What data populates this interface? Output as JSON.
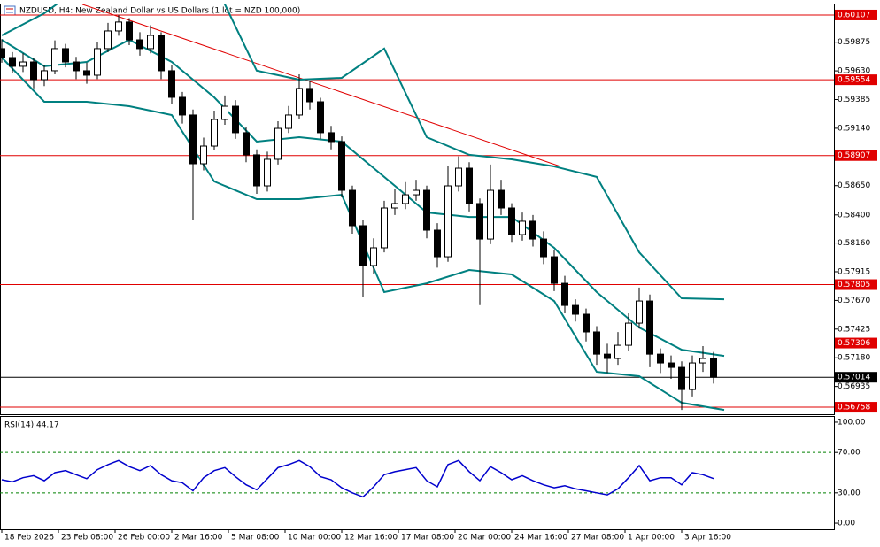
{
  "chart_data": [
    {
      "type": "candlestick",
      "title": "NZDUSD, H4:  New Zealand Dollar vs US Dollars (1 lot = NZD 100,000)",
      "xlim": [
        -0.5,
        235
      ],
      "ylim": [
        0.56698,
        0.60205
      ],
      "xticks": [
        {
          "value": 0,
          "label": "18 Feb 2026"
        },
        {
          "value": 16,
          "label": "23 Feb 08:00"
        },
        {
          "value": 32,
          "label": "26 Feb 00:00"
        },
        {
          "value": 48,
          "label": "2 Mar 16:00"
        },
        {
          "value": 64,
          "label": "5 Mar 08:00"
        },
        {
          "value": 80,
          "label": "10 Mar 00:00"
        },
        {
          "value": 96,
          "label": "12 Mar 16:00"
        },
        {
          "value": 112,
          "label": "17 Mar 08:00"
        },
        {
          "value": 128,
          "label": "20 Mar 00:00"
        },
        {
          "value": 144,
          "label": "24 Mar 16:00"
        },
        {
          "value": 160,
          "label": "27 Mar 08:00"
        },
        {
          "value": 176,
          "label": "1 Apr 00:00"
        },
        {
          "value": 192,
          "label": "3 Apr 16:00"
        }
      ],
      "yticks": [
        {
          "value": 0.59875,
          "label": "0.59875"
        },
        {
          "value": 0.5963,
          "label": "0.59630"
        },
        {
          "value": 0.59385,
          "label": "0.59385"
        },
        {
          "value": 0.5914,
          "label": "0.59140"
        },
        {
          "value": 0.5865,
          "label": "0.58650"
        },
        {
          "value": 0.584,
          "label": "0.58400"
        },
        {
          "value": 0.5816,
          "label": "0.58160"
        },
        {
          "value": 0.57915,
          "label": "0.57915"
        },
        {
          "value": 0.5767,
          "label": "0.57670"
        },
        {
          "value": 0.57425,
          "label": "0.57425"
        },
        {
          "value": 0.5718,
          "label": "0.57180"
        },
        {
          "value": 0.56935,
          "label": "0.56935"
        }
      ],
      "x": [
        0,
        3,
        6,
        9,
        12,
        15,
        18,
        21,
        24,
        27,
        30,
        33,
        36,
        39,
        42,
        45,
        48,
        51,
        54,
        57,
        60,
        63,
        66,
        69,
        72,
        75,
        78,
        81,
        84,
        87,
        90,
        93,
        96,
        99,
        102,
        105,
        108,
        111,
        114,
        117,
        120,
        123,
        126,
        129,
        132,
        135,
        138,
        141,
        144,
        147,
        150,
        153,
        156,
        159,
        162,
        165,
        168,
        171,
        174,
        177,
        180,
        183,
        186,
        189,
        192,
        195,
        198,
        201
      ],
      "open": [
        0.5982,
        0.59744,
        0.59669,
        0.59706,
        0.59555,
        0.59631,
        0.5982,
        0.59706,
        0.59631,
        0.59593,
        0.5982,
        0.59971,
        0.60047,
        0.59895,
        0.5982,
        0.59933,
        0.59631,
        0.59404,
        0.59253,
        0.58837,
        0.58988,
        0.59215,
        0.59328,
        0.59102,
        0.58913,
        0.58648,
        0.58875,
        0.59139,
        0.59253,
        0.5948,
        0.59366,
        0.59102,
        0.59026,
        0.5861,
        0.58308,
        0.57968,
        0.58119,
        0.58459,
        0.58497,
        0.58572,
        0.5861,
        0.5827,
        0.58043,
        0.58648,
        0.58799,
        0.58497,
        0.58194,
        0.5861,
        0.58459,
        0.58232,
        0.58346,
        0.58194,
        0.58043,
        0.57816,
        0.57627,
        0.57552,
        0.57401,
        0.57211,
        0.57174,
        0.57287,
        0.57476,
        0.57665,
        0.57211,
        0.57136,
        0.57098,
        0.56909,
        0.57136,
        0.57174
      ],
      "high": [
        0.599,
        0.5979,
        0.5978,
        0.5974,
        0.5968,
        0.5989,
        0.5986,
        0.5975,
        0.597,
        0.5988,
        0.6004,
        0.60107,
        0.6008,
        0.5996,
        0.6002,
        0.5996,
        0.5968,
        0.5945,
        0.593,
        0.5906,
        0.5929,
        0.5942,
        0.5938,
        0.5915,
        0.5896,
        0.5894,
        0.592,
        0.5933,
        0.596,
        0.5954,
        0.594,
        0.5916,
        0.5907,
        0.5865,
        0.5836,
        0.582,
        0.5852,
        0.5862,
        0.5868,
        0.587,
        0.5865,
        0.5833,
        0.5882,
        0.589,
        0.5885,
        0.5854,
        0.5883,
        0.587,
        0.585,
        0.5842,
        0.584,
        0.5826,
        0.581,
        0.5788,
        0.5768,
        0.576,
        0.5745,
        0.573,
        0.574,
        0.5756,
        0.5778,
        0.5772,
        0.5726,
        0.572,
        0.5715,
        0.572,
        0.5728,
        0.5723
      ],
      "low": [
        0.597,
        0.5961,
        0.5962,
        0.5948,
        0.595,
        0.596,
        0.5966,
        0.5956,
        0.5952,
        0.5956,
        0.5979,
        0.5993,
        0.5985,
        0.5976,
        0.5978,
        0.5956,
        0.5935,
        0.5918,
        0.58361,
        0.5878,
        0.5895,
        0.5917,
        0.5905,
        0.5885,
        0.5858,
        0.586,
        0.5883,
        0.591,
        0.5922,
        0.593,
        0.5905,
        0.5896,
        0.5855,
        0.5824,
        0.577,
        0.579,
        0.5808,
        0.584,
        0.5845,
        0.5852,
        0.582,
        0.5795,
        0.58,
        0.586,
        0.5843,
        0.5763,
        0.5815,
        0.584,
        0.5817,
        0.5818,
        0.5813,
        0.5798,
        0.5775,
        0.5756,
        0.5749,
        0.5732,
        0.5712,
        0.5705,
        0.5712,
        0.5724,
        0.5743,
        0.571,
        0.5705,
        0.57,
        0.56735,
        0.5685,
        0.5706,
        0.5696
      ],
      "close": [
        0.59744,
        0.59669,
        0.59706,
        0.59555,
        0.59631,
        0.5982,
        0.59706,
        0.59631,
        0.59593,
        0.5982,
        0.59971,
        0.60047,
        0.59895,
        0.5982,
        0.59933,
        0.59631,
        0.59404,
        0.59253,
        0.58837,
        0.58988,
        0.59215,
        0.59328,
        0.59102,
        0.58913,
        0.58648,
        0.58875,
        0.59139,
        0.59253,
        0.5948,
        0.59366,
        0.59102,
        0.59026,
        0.5861,
        0.58308,
        0.57968,
        0.58119,
        0.58459,
        0.58497,
        0.58572,
        0.5861,
        0.5827,
        0.58043,
        0.58648,
        0.58799,
        0.58497,
        0.58194,
        0.5861,
        0.58459,
        0.58232,
        0.58346,
        0.58194,
        0.58043,
        0.57816,
        0.57627,
        0.57552,
        0.57401,
        0.57211,
        0.57174,
        0.57287,
        0.57476,
        0.57665,
        0.57211,
        0.57136,
        0.57098,
        0.56909,
        0.57136,
        0.57174,
        0.57014
      ],
      "candle_color": "#000000",
      "bands": {
        "color": "#008080",
        "x": [
          0,
          12,
          24,
          36,
          48,
          60,
          72,
          84,
          96,
          108,
          120,
          132,
          144,
          156,
          168,
          180,
          192,
          204
        ],
        "upper": [
          0.59933,
          0.60122,
          0.60387,
          0.60538,
          0.60614,
          0.60387,
          0.59631,
          0.59555,
          0.5957,
          0.5982,
          0.59064,
          0.58913,
          0.58875,
          0.58814,
          0.58724,
          0.58081,
          0.57688,
          0.5768
        ],
        "middle": [
          0.59895,
          0.59669,
          0.59706,
          0.59895,
          0.59706,
          0.59404,
          0.59026,
          0.59064,
          0.59026,
          0.58724,
          0.58421,
          0.58383,
          0.58383,
          0.58119,
          0.57741,
          0.57438,
          0.57249,
          0.57196
        ],
        "lower": [
          0.59744,
          0.59366,
          0.59366,
          0.59328,
          0.59253,
          0.58686,
          0.58535,
          0.58535,
          0.58572,
          0.57741,
          0.57816,
          0.5793,
          0.57892,
          0.57665,
          0.5706,
          0.57023,
          0.56796,
          0.56735
        ]
      },
      "trendline": {
        "color": "#e00000",
        "x": [
          22.75,
          157.75
        ],
        "y": [
          0.60198,
          0.58814
        ]
      },
      "levels": [
        0.60107,
        0.59554,
        0.58907,
        0.57805,
        0.57306,
        0.56758
      ],
      "level_color": "#e00000",
      "last": 0.57014
    },
    {
      "type": "line",
      "title": "RSI(14) 44.17",
      "ylim": [
        -6.1,
        106.1
      ],
      "yticks": [
        {
          "value": 100,
          "label": "100.00"
        },
        {
          "value": 70,
          "label": "70.00"
        },
        {
          "value": 30,
          "label": "30.00"
        },
        {
          "value": 0,
          "label": "0.00"
        }
      ],
      "levels": [
        70,
        30
      ],
      "color": "#0000cd",
      "values": [
        43,
        41,
        45,
        47,
        42,
        50,
        52,
        48,
        44,
        53,
        58,
        62,
        56,
        52,
        57,
        48,
        42,
        40,
        32,
        45,
        52,
        55,
        46,
        38,
        33,
        44,
        55,
        58,
        62,
        56,
        46,
        43,
        35,
        30,
        26,
        36,
        48,
        51,
        53,
        55,
        42,
        36,
        58,
        62,
        51,
        42,
        56,
        50,
        43,
        47,
        42,
        38,
        35,
        37,
        34,
        32,
        30,
        28,
        34,
        45,
        57,
        42,
        45,
        45,
        38,
        50,
        48,
        44.17
      ]
    }
  ]
}
